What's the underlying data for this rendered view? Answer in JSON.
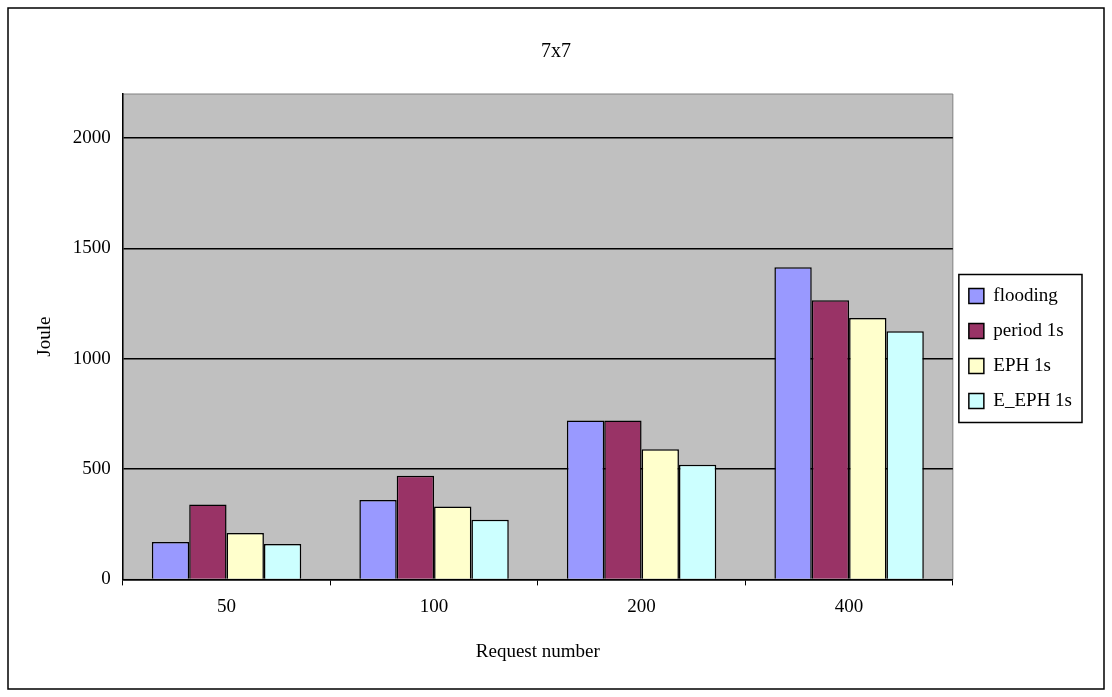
{
  "chart_data": {
    "type": "bar",
    "title": "7x7",
    "xlabel": "Request number",
    "ylabel": "Joule",
    "categories": [
      "50",
      "100",
      "200",
      "400"
    ],
    "series": [
      {
        "name": "flooding",
        "color": "#9999ff",
        "values": [
          170,
          360,
          720,
          1415
        ]
      },
      {
        "name": "period 1s",
        "color": "#993366",
        "values": [
          340,
          470,
          720,
          1265
        ]
      },
      {
        "name": "EPH 1s",
        "color": "#ffffcc",
        "values": [
          210,
          330,
          590,
          1185
        ]
      },
      {
        "name": "E_EPH 1s",
        "color": "#ccffff",
        "values": [
          160,
          270,
          520,
          1125
        ]
      }
    ],
    "ylim": [
      0,
      2200
    ],
    "yticks": [
      0,
      500,
      1000,
      1500,
      2000
    ],
    "grid": "y",
    "legend": "right"
  }
}
